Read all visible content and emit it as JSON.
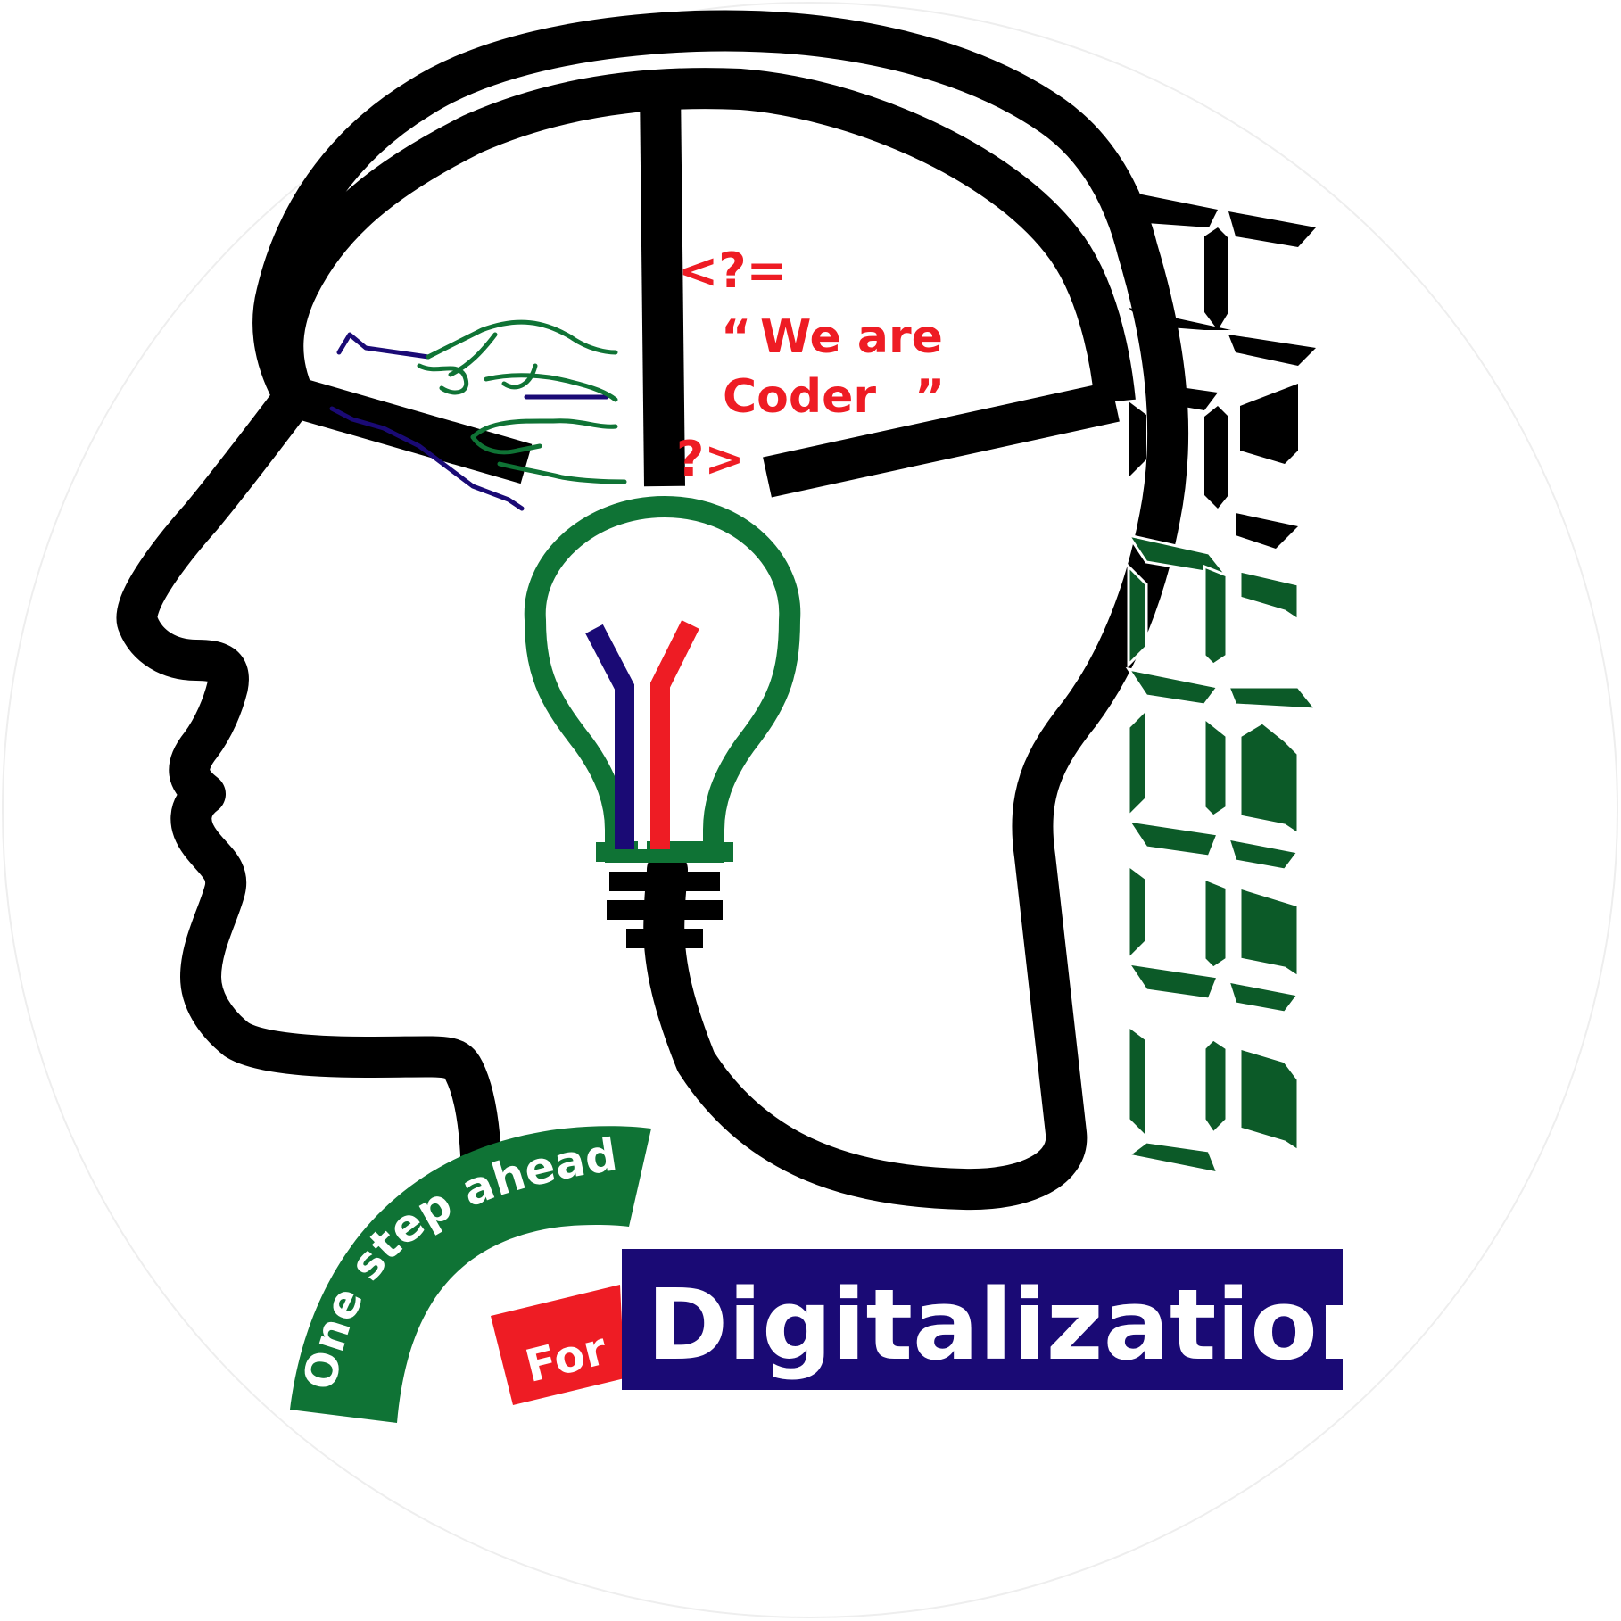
{
  "logo": {
    "code_open": "<?=",
    "quote_open": "“",
    "quote_line1": "We are",
    "quote_line2": "Coder",
    "quote_close": "”",
    "code_close": "?>",
    "brand_word": "HEHBBS",
    "tagline_arc": "One step ahead",
    "tagline_for": "For",
    "tagline_main": "Digitalization"
  },
  "colors": {
    "outline": "#000000",
    "green": "#0f7335",
    "dark_green": "#0c5a28",
    "red": "#ee1c24",
    "navy": "#1a0a75",
    "white": "#ffffff"
  }
}
